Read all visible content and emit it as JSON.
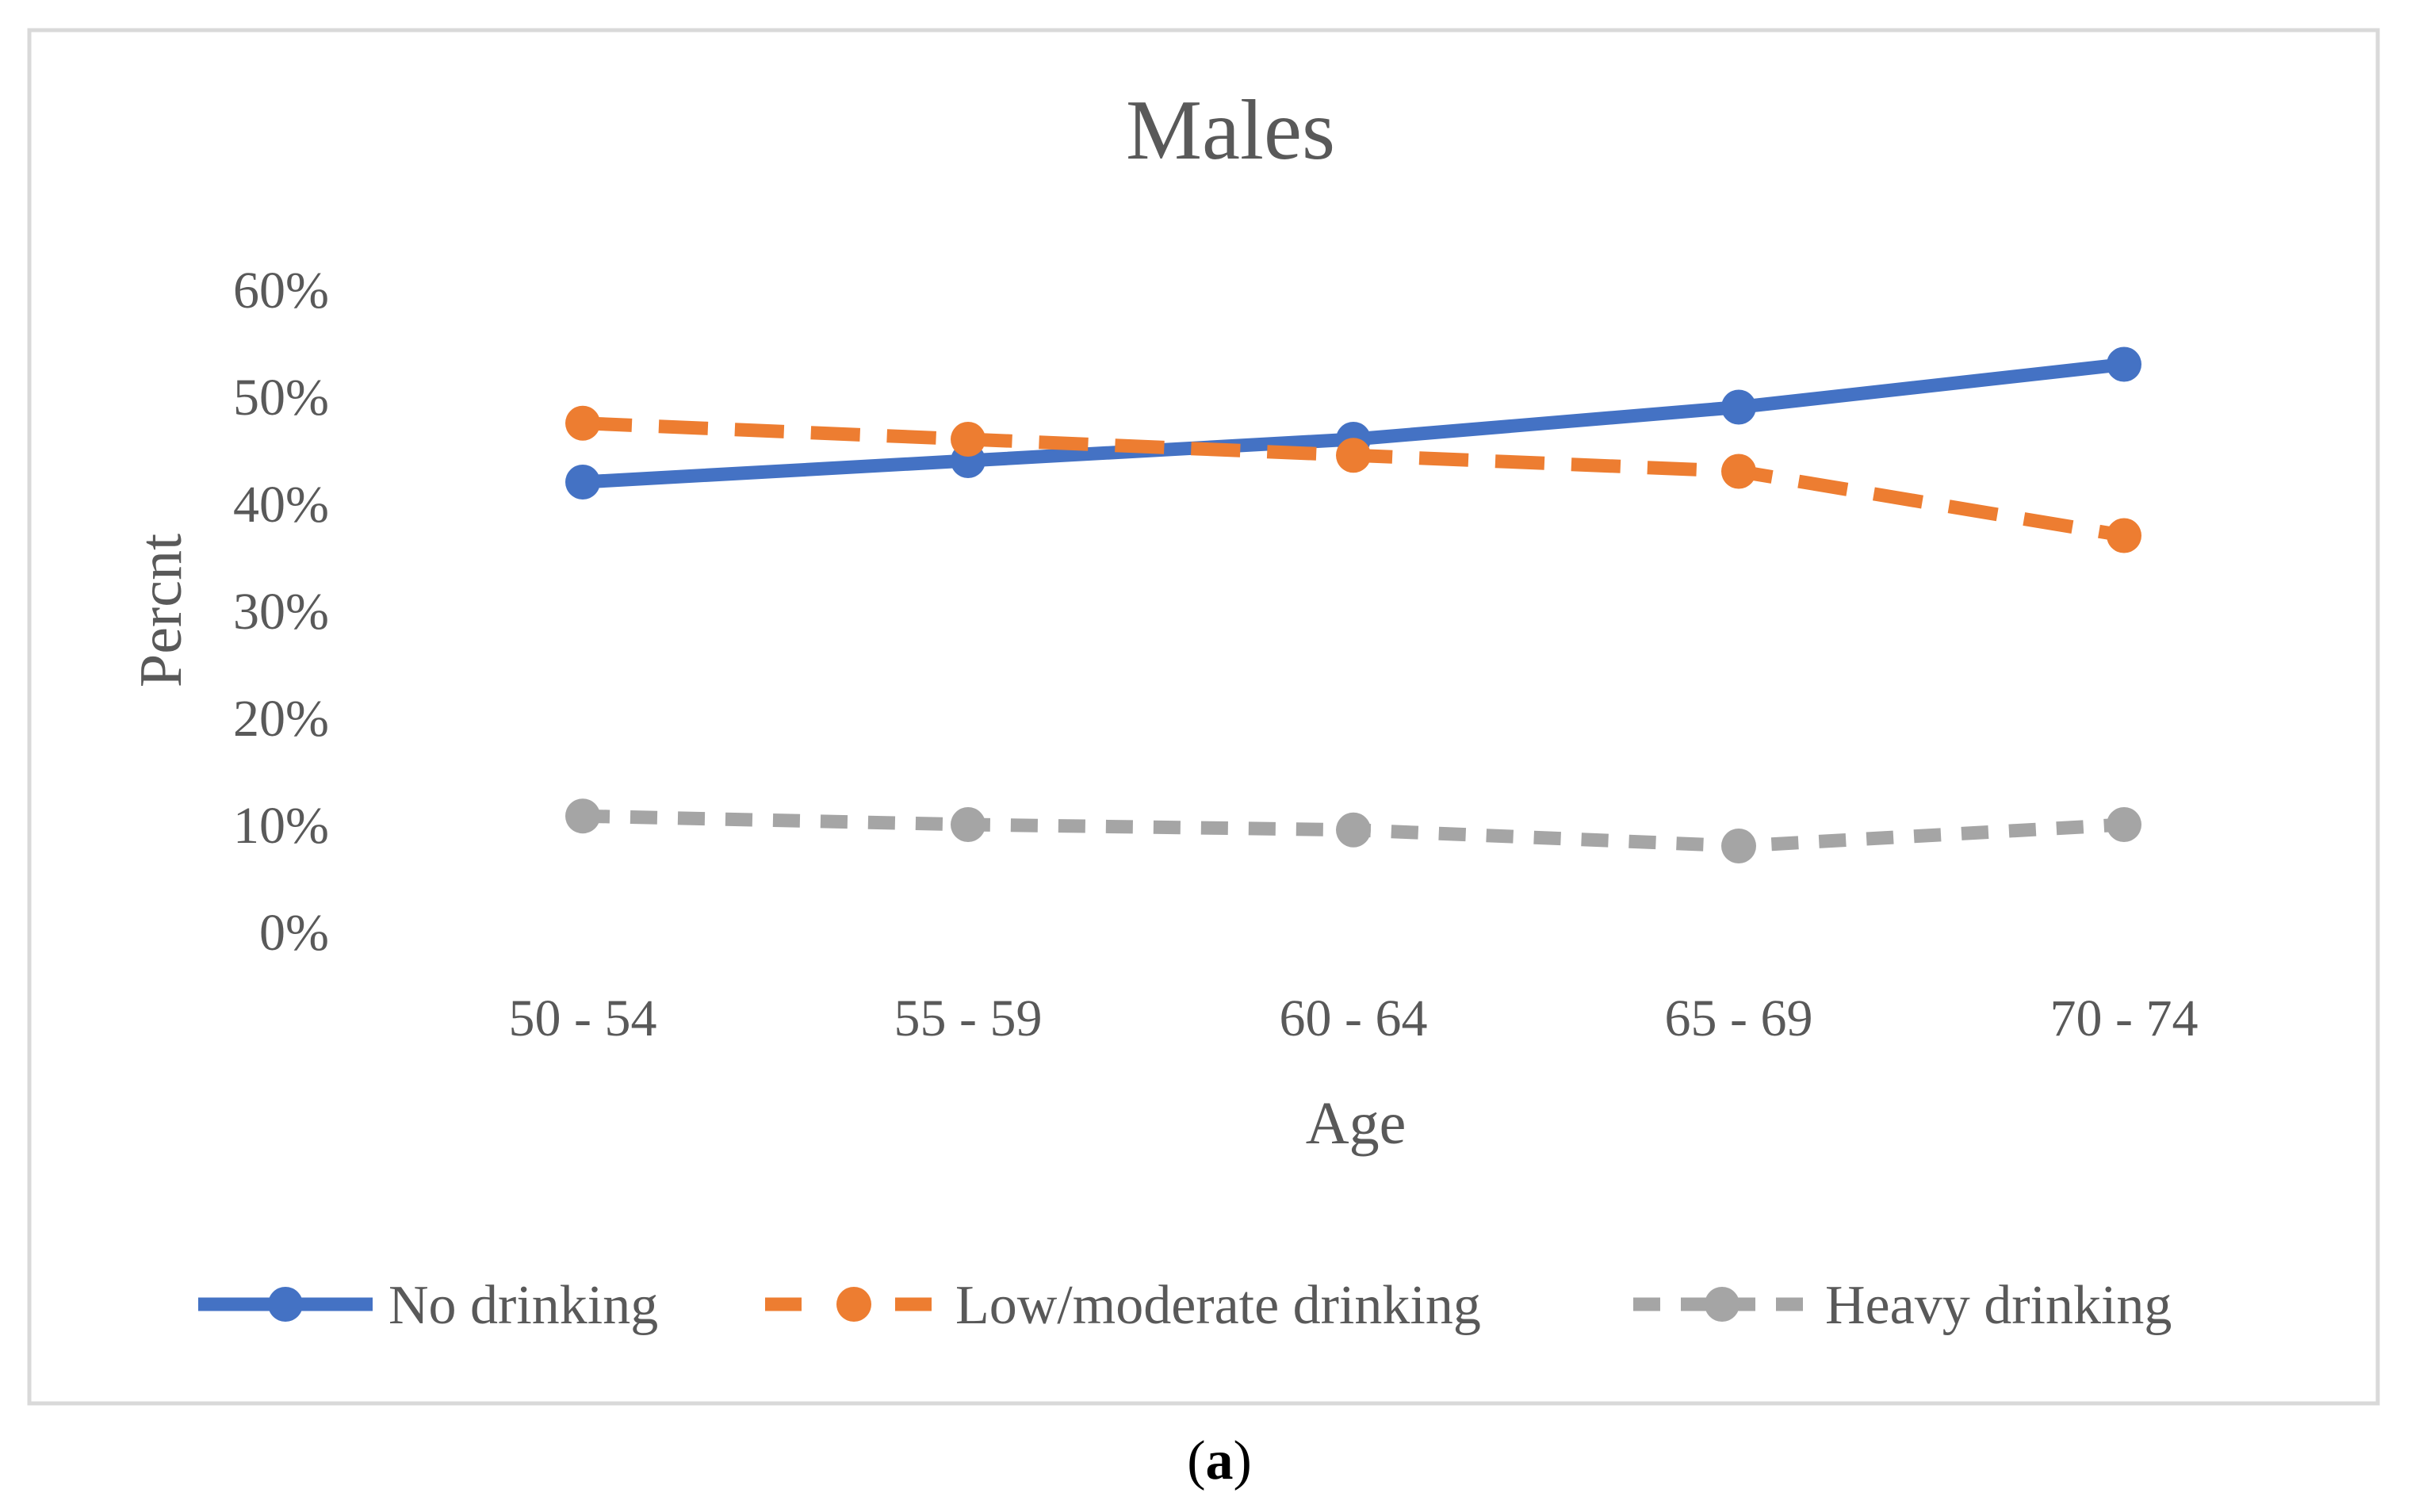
{
  "chart_data": {
    "type": "line",
    "title": "Males",
    "xlabel": "Age",
    "ylabel": "Percnt",
    "categories": [
      "50 - 54",
      "55 - 59",
      "60 - 64",
      "65 - 69",
      "70 - 74"
    ],
    "ylim": [
      0,
      60
    ],
    "yticks": [
      "0%",
      "10%",
      "20%",
      "30%",
      "40%",
      "50%",
      "60%"
    ],
    "grid": false,
    "legend": "bottom",
    "series": [
      {
        "name": "No drinking",
        "values": [
          42,
          44,
          46,
          49,
          53
        ],
        "color": "#4472C4",
        "dash": "solid"
      },
      {
        "name": "Low/moderate drinking",
        "values": [
          47.5,
          46,
          44.5,
          43,
          37
        ],
        "color": "#ED7D31",
        "dash": "long-dash"
      },
      {
        "name": "Heavy drinking",
        "values": [
          10.8,
          10,
          9.5,
          8,
          10
        ],
        "color": "#A5A5A5",
        "dash": "dash"
      }
    ]
  },
  "caption": {
    "open": "(",
    "letter": "a",
    "close": ")"
  }
}
